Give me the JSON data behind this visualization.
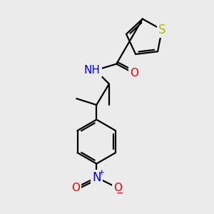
{
  "bg_color": "#ebebeb",
  "bond_color": "#000000",
  "S_color": "#b8b800",
  "N_color": "#0000ee",
  "O_color": "#ee0000",
  "line_width": 1.6,
  "dbo": 0.08,
  "font_size": 11,
  "fig_width": 3.0,
  "fig_height": 3.0,
  "xlim": [
    0,
    10
  ],
  "ylim": [
    0,
    10
  ]
}
